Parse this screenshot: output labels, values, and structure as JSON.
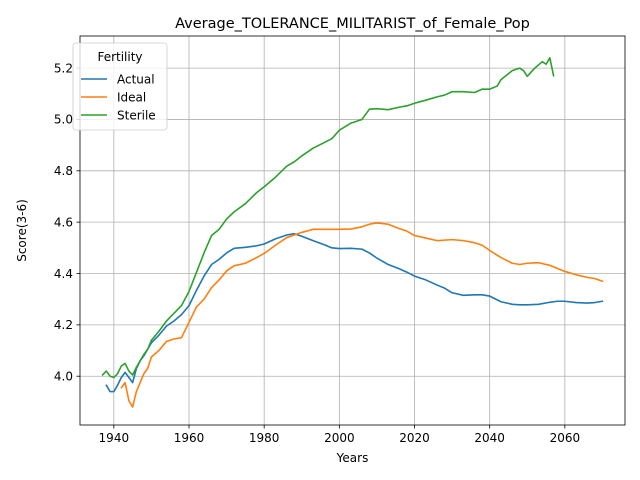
{
  "chart_data": {
    "type": "line",
    "title": "Average_TOLERANCE_MILITARIST_of_Female_Pop",
    "xlabel": "Years",
    "ylabel": "Score(3-6)",
    "xlim": [
      1931,
      2076
    ],
    "ylim": [
      3.81,
      5.325
    ],
    "xticks": [
      1940,
      1960,
      1980,
      2000,
      2020,
      2040,
      2060
    ],
    "yticks": [
      4.0,
      4.2,
      4.4,
      4.6,
      4.8,
      5.0,
      5.2
    ],
    "xtick_labels": [
      "1940",
      "1960",
      "1980",
      "2000",
      "2020",
      "2040",
      "2060"
    ],
    "ytick_labels": [
      "4.0",
      "4.2",
      "4.4",
      "4.6",
      "4.8",
      "5.0",
      "5.2"
    ],
    "grid": true,
    "legend": {
      "title": "Fertility",
      "placement": "top-left"
    },
    "series": [
      {
        "name": "Actual",
        "color": "#1f77b4",
        "x": [
          1938,
          1939,
          1940,
          1941,
          1942,
          1943,
          1944,
          1945,
          1946,
          1947,
          1948,
          1949,
          1950,
          1952,
          1954,
          1956,
          1958,
          1960,
          1962,
          1964,
          1966,
          1968,
          1970,
          1972,
          1975,
          1978,
          1980,
          1983,
          1986,
          1988,
          1990,
          1993,
          1996,
          1998,
          2000,
          2003,
          2006,
          2008,
          2010,
          2013,
          2016,
          2018,
          2020,
          2023,
          2026,
          2028,
          2030,
          2033,
          2036,
          2038,
          2040,
          2043,
          2046,
          2048,
          2050,
          2053,
          2056,
          2058,
          2060,
          2063,
          2066,
          2068,
          2070
        ],
        "y": [
          3.965,
          3.94,
          3.94,
          3.965,
          3.995,
          4.015,
          3.995,
          3.975,
          4.03,
          4.06,
          4.08,
          4.105,
          4.13,
          4.16,
          4.195,
          4.215,
          4.24,
          4.275,
          4.335,
          4.39,
          4.435,
          4.455,
          4.48,
          4.498,
          4.502,
          4.508,
          4.515,
          4.535,
          4.55,
          4.555,
          4.545,
          4.528,
          4.512,
          4.5,
          4.497,
          4.498,
          4.495,
          4.48,
          4.46,
          4.435,
          4.418,
          4.405,
          4.39,
          4.375,
          4.355,
          4.343,
          4.325,
          4.315,
          4.317,
          4.317,
          4.312,
          4.29,
          4.28,
          4.278,
          4.278,
          4.28,
          4.288,
          4.292,
          4.292,
          4.287,
          4.285,
          4.287,
          4.292
        ]
      },
      {
        "name": "Ideal",
        "color": "#ff7f0e",
        "x": [
          1942,
          1943,
          1944,
          1945,
          1946,
          1947,
          1948,
          1949,
          1950,
          1952,
          1954,
          1956,
          1958,
          1960,
          1962,
          1964,
          1966,
          1968,
          1970,
          1972,
          1975,
          1978,
          1980,
          1983,
          1986,
          1988,
          1990,
          1993,
          1996,
          1998,
          2000,
          2003,
          2006,
          2008,
          2010,
          2013,
          2016,
          2018,
          2020,
          2023,
          2026,
          2028,
          2030,
          2033,
          2036,
          2038,
          2040,
          2043,
          2046,
          2048,
          2050,
          2053,
          2056,
          2058,
          2060,
          2063,
          2066,
          2068,
          2070
        ],
        "y": [
          3.955,
          3.975,
          3.905,
          3.88,
          3.94,
          3.975,
          4.01,
          4.03,
          4.075,
          4.1,
          4.135,
          4.145,
          4.15,
          4.21,
          4.27,
          4.3,
          4.345,
          4.375,
          4.41,
          4.43,
          4.44,
          4.462,
          4.478,
          4.51,
          4.54,
          4.55,
          4.56,
          4.572,
          4.572,
          4.572,
          4.572,
          4.573,
          4.582,
          4.592,
          4.597,
          4.592,
          4.575,
          4.565,
          4.548,
          4.538,
          4.528,
          4.53,
          4.532,
          4.528,
          4.52,
          4.51,
          4.49,
          4.462,
          4.44,
          4.435,
          4.44,
          4.442,
          4.432,
          4.42,
          4.408,
          4.395,
          4.385,
          4.38,
          4.37
        ]
      },
      {
        "name": "Sterile",
        "color": "#2ca02c",
        "x": [
          1937,
          1938,
          1939,
          1940,
          1941,
          1942,
          1943,
          1944,
          1945,
          1946,
          1947,
          1948,
          1949,
          1950,
          1952,
          1954,
          1956,
          1958,
          1960,
          1962,
          1964,
          1966,
          1968,
          1970,
          1972,
          1975,
          1978,
          1980,
          1983,
          1986,
          1988,
          1990,
          1993,
          1996,
          1998,
          2000,
          2003,
          2006,
          2008,
          2010,
          2013,
          2016,
          2018,
          2020,
          2023,
          2026,
          2028,
          2030,
          2033,
          2036,
          2038,
          2040,
          2042,
          2043,
          2046,
          2048,
          2049,
          2050,
          2052,
          2054,
          2055,
          2056,
          2057
        ],
        "y": [
          4.005,
          4.02,
          4.0,
          3.995,
          4.01,
          4.04,
          4.05,
          4.02,
          4.005,
          4.035,
          4.06,
          4.085,
          4.105,
          4.14,
          4.175,
          4.215,
          4.245,
          4.275,
          4.33,
          4.405,
          4.48,
          4.548,
          4.572,
          4.612,
          4.64,
          4.672,
          4.715,
          4.738,
          4.775,
          4.818,
          4.835,
          4.858,
          4.888,
          4.91,
          4.925,
          4.958,
          4.985,
          5.0,
          5.04,
          5.042,
          5.038,
          5.048,
          5.053,
          5.063,
          5.075,
          5.088,
          5.095,
          5.108,
          5.108,
          5.105,
          5.118,
          5.118,
          5.13,
          5.155,
          5.19,
          5.2,
          5.19,
          5.168,
          5.2,
          5.225,
          5.215,
          5.24,
          5.17
        ]
      }
    ]
  }
}
